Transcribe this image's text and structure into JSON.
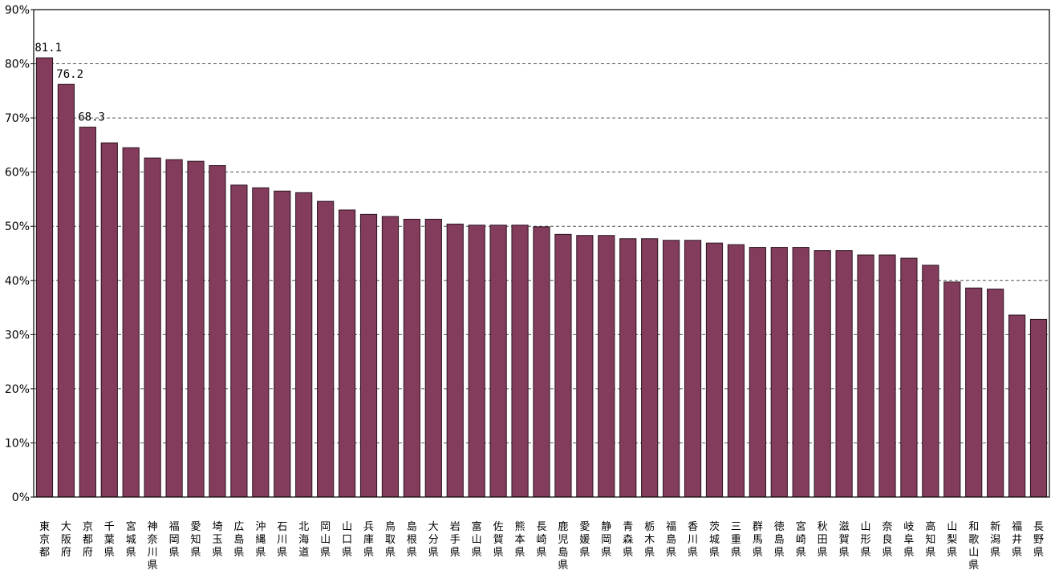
{
  "chart_data": {
    "type": "bar",
    "title": "",
    "xlabel": "",
    "ylabel": "",
    "ylim": [
      0,
      90
    ],
    "yticks": [
      0,
      10,
      20,
      30,
      40,
      50,
      60,
      70,
      80,
      90
    ],
    "ytick_labels": [
      "0%",
      "10%",
      "20%",
      "30%",
      "40%",
      "50%",
      "60%",
      "70%",
      "80%",
      "90%"
    ],
    "grid": "horizontal-dashed",
    "legend": "none",
    "bar_color": "#833C5C",
    "categories": [
      "東京都",
      "大阪府",
      "京都府",
      "千葉県",
      "宮城県",
      "神奈川県",
      "福岡県",
      "愛知県",
      "埼玉県",
      "広島県",
      "沖縄県",
      "石川県",
      "北海道",
      "岡山県",
      "山口県",
      "兵庫県",
      "鳥取県",
      "島根県",
      "大分県",
      "岩手県",
      "富山県",
      "佐賀県",
      "熊本県",
      "長崎県",
      "鹿児島県",
      "愛媛県",
      "静岡県",
      "青森県",
      "栃木県",
      "福島県",
      "香川県",
      "茨城県",
      "三重県",
      "群馬県",
      "徳島県",
      "宮崎県",
      "秋田県",
      "滋賀県",
      "山形県",
      "奈良県",
      "岐阜県",
      "高知県",
      "山梨県",
      "和歌山県",
      "新潟県",
      "福井県",
      "長野県"
    ],
    "values": [
      81.1,
      76.2,
      68.3,
      65.4,
      64.5,
      62.6,
      62.3,
      62.0,
      61.2,
      57.6,
      57.1,
      56.5,
      56.2,
      54.6,
      53.0,
      52.2,
      51.8,
      51.3,
      51.3,
      50.4,
      50.2,
      50.2,
      50.2,
      49.9,
      48.5,
      48.3,
      48.3,
      47.7,
      47.7,
      47.4,
      47.4,
      46.9,
      46.6,
      46.1,
      46.1,
      46.1,
      45.5,
      45.5,
      44.7,
      44.7,
      44.1,
      42.8,
      39.7,
      38.6,
      38.4,
      33.6,
      32.8
    ],
    "data_labels": [
      {
        "index": 0,
        "text": "81.1"
      },
      {
        "index": 1,
        "text": "76.2"
      },
      {
        "index": 2,
        "text": "68.3"
      }
    ]
  }
}
